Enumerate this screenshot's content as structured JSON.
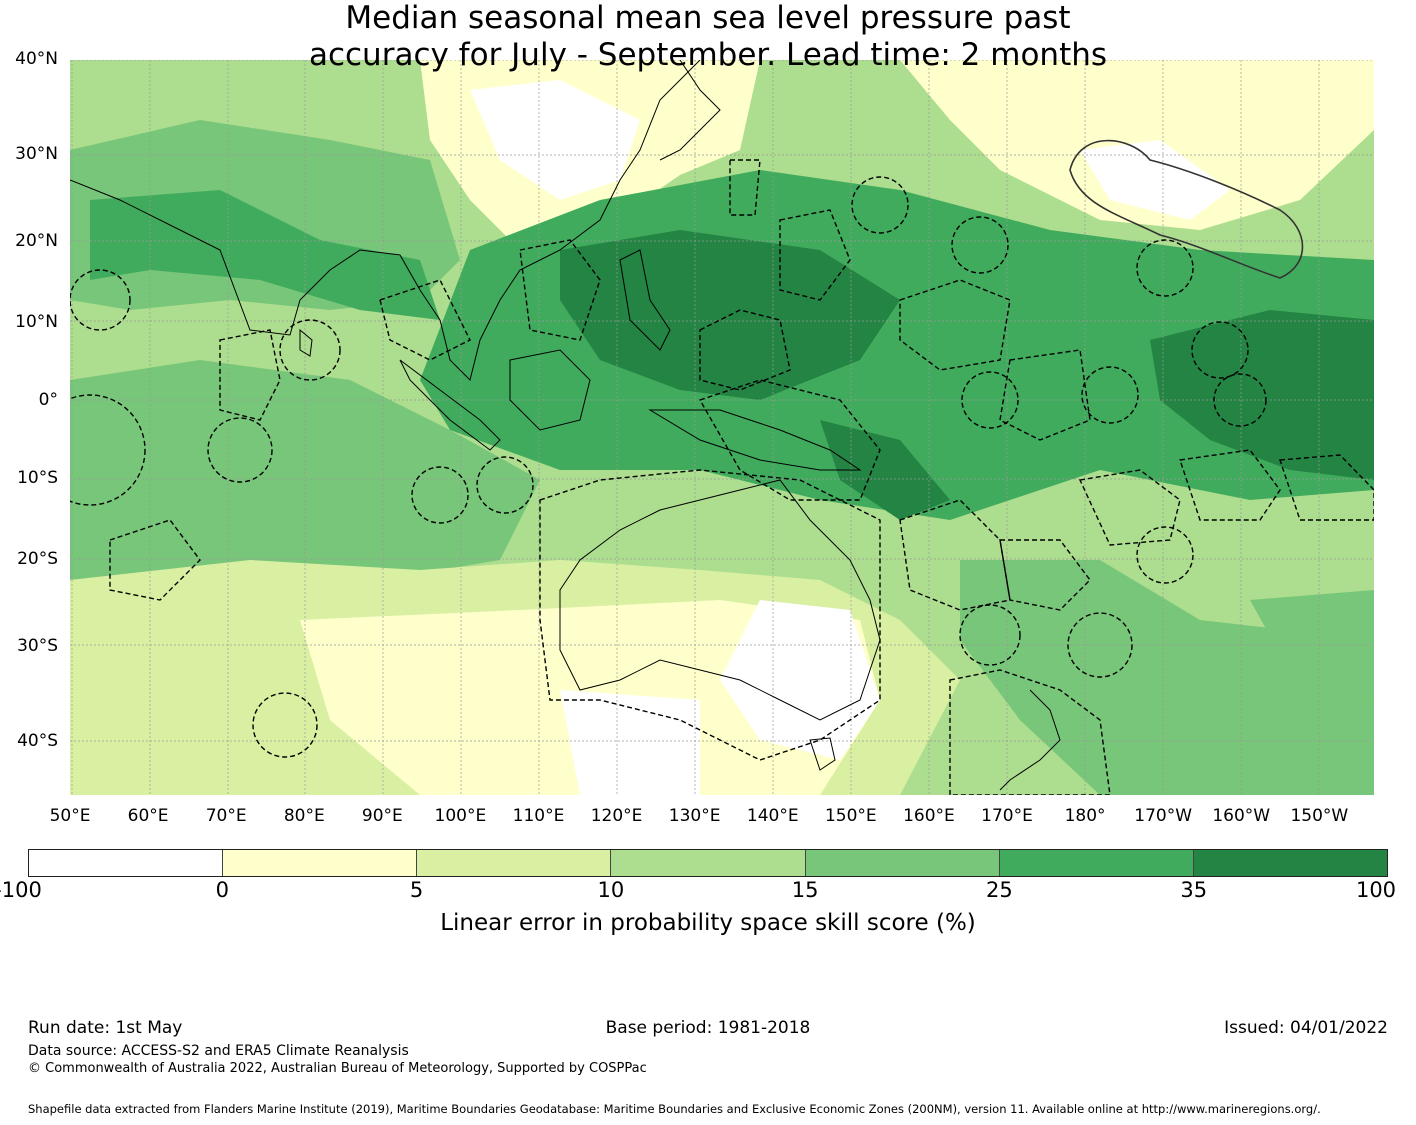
{
  "title": {
    "line1": "Median seasonal mean sea level pressure past",
    "line2": "accuracy for July - September. Lead time: 2 months"
  },
  "map": {
    "lat_labels": [
      "40°N",
      "30°N",
      "20°N",
      "10°N",
      "0°",
      "10°S",
      "20°S",
      "30°S",
      "40°S"
    ],
    "lat_values": [
      40,
      30,
      20,
      10,
      0,
      -10,
      -20,
      -30,
      -40
    ],
    "lon_labels": [
      "50°E",
      "60°E",
      "70°E",
      "80°E",
      "90°E",
      "100°E",
      "110°E",
      "120°E",
      "130°E",
      "140°E",
      "150°E",
      "160°E",
      "170°E",
      "180°",
      "170°W",
      "160°W",
      "150°W"
    ],
    "lon_values": [
      50,
      60,
      70,
      80,
      90,
      100,
      110,
      120,
      130,
      140,
      150,
      160,
      170,
      180,
      190,
      200,
      210
    ],
    "lon_range": [
      50,
      217
    ],
    "lat_range": [
      -45,
      40
    ]
  },
  "colorbar": {
    "colors": [
      "#ffffff",
      "#ffffcc",
      "#d9f0a3",
      "#addd8e",
      "#78c679",
      "#41ab5d",
      "#238443"
    ],
    "ticks": [
      "-100",
      "0",
      "5",
      "10",
      "15",
      "25",
      "35",
      "100"
    ],
    "label": "Linear error in probability space skill score (%)"
  },
  "footer": {
    "run_date": "Run date: 1st May",
    "base_period": "Base period: 1981-2018",
    "issued": "Issued: 04/01/2022",
    "data_source": "Data source: ACCESS-S2 and ERA5 Climate Reanalysis",
    "copyright": "© Commonwealth of Australia 2022, Australian Bureau of Meteorology, Supported by COSPPac",
    "shapefile": "Shapefile data extracted from Flanders Marine Institute (2019), Maritime Boundaries Geodatabase: Maritime Boundaries and Exclusive Economic Zones (200NM), version 11. Available online at http://www.marineregions.org/."
  }
}
